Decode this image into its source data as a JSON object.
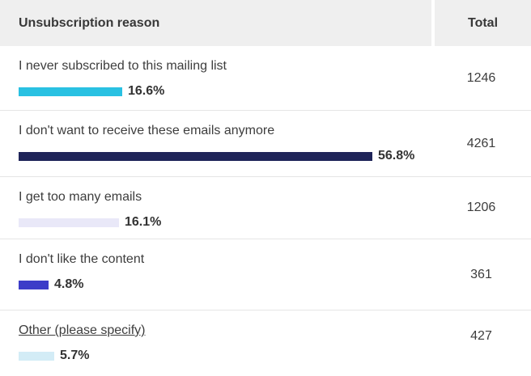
{
  "header": {
    "reason_label": "Unsubscription reason",
    "total_label": "Total"
  },
  "rows": [
    {
      "reason": "I never subscribed to this mailing list",
      "percent": 16.6,
      "percent_label": "16.6%",
      "total": "1246",
      "bar_color": "#29c1e2",
      "is_link": false
    },
    {
      "reason": "I don't want to receive these emails anymore",
      "percent": 56.8,
      "percent_label": "56.8%",
      "total": "4261",
      "bar_color": "#1f2459",
      "is_link": false
    },
    {
      "reason": "I get too many emails",
      "percent": 16.1,
      "percent_label": "16.1%",
      "total": "1206",
      "bar_color": "#e9e8f8",
      "is_link": false
    },
    {
      "reason": "I don't like the content",
      "percent": 4.8,
      "percent_label": "4.8%",
      "total": "361",
      "bar_color": "#3c3cc8",
      "is_link": false
    },
    {
      "reason": "Other (please specify)",
      "percent": 5.7,
      "percent_label": "5.7%",
      "total": "427",
      "bar_color": "#d3ecf6",
      "is_link": true
    }
  ],
  "colors": {
    "header_background": "#efefef",
    "row_separator": "#e5e5e5",
    "text": "#3d3d3d"
  },
  "chart_data": {
    "type": "bar",
    "orientation": "horizontal",
    "title": "Unsubscription reason",
    "categories": [
      "I never subscribed to this mailing list",
      "I don't want to receive these emails anymore",
      "I get too many emails",
      "I don't like the content",
      "Other (please specify)"
    ],
    "series": [
      {
        "name": "Percent",
        "unit": "%",
        "values": [
          16.6,
          56.8,
          16.1,
          4.8,
          5.7
        ]
      },
      {
        "name": "Total",
        "values": [
          1246,
          4261,
          1206,
          361,
          427
        ]
      }
    ],
    "bar_colors": [
      "#29c1e2",
      "#1f2459",
      "#e9e8f8",
      "#3c3cc8",
      "#d3ecf6"
    ],
    "legend": false,
    "grid": false,
    "xlim_percent": [
      0,
      100
    ]
  }
}
